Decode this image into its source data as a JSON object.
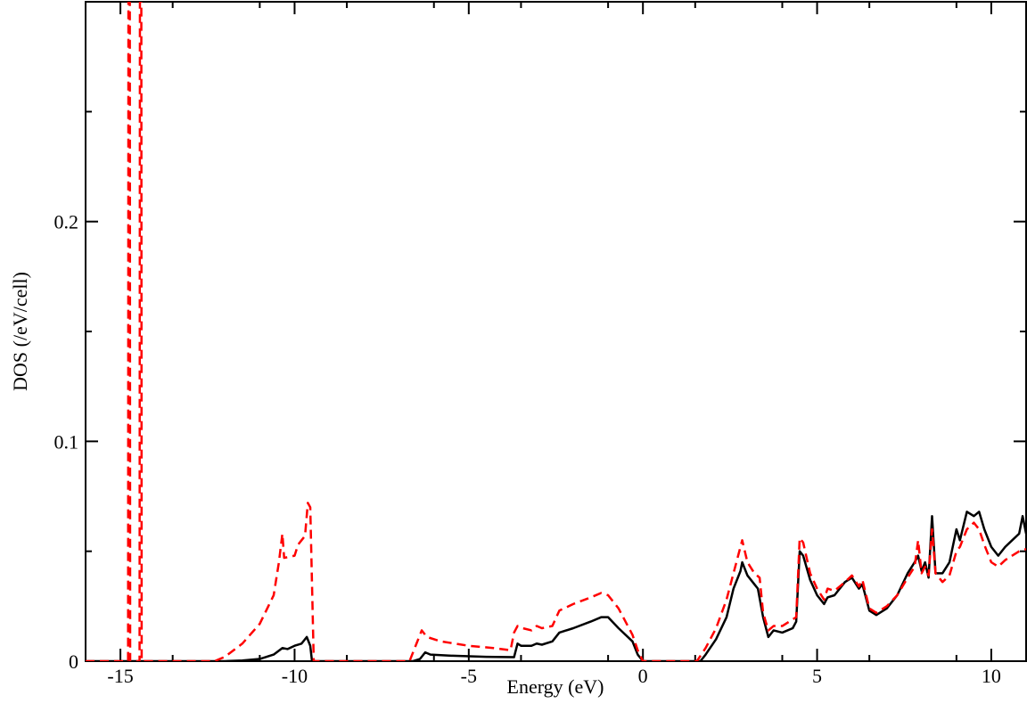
{
  "chart_data": {
    "type": "line",
    "title": "",
    "xlabel": "Energy (eV)",
    "ylabel": "DOS (/eV/cell)",
    "xlim": [
      -16,
      11
    ],
    "ylim": [
      0,
      0.3
    ],
    "x_ticks": [
      {
        "value": -15,
        "label": "-15"
      },
      {
        "value": -10,
        "label": "-10"
      },
      {
        "value": -5,
        "label": "-5"
      },
      {
        "value": 0,
        "label": "0"
      },
      {
        "value": 5,
        "label": "5"
      },
      {
        "value": 10,
        "label": "10"
      }
    ],
    "y_ticks": [
      {
        "value": 0,
        "label": "0"
      },
      {
        "value": 0.1,
        "label": "0.1"
      },
      {
        "value": 0.2,
        "label": "0.2"
      }
    ],
    "grid": false,
    "legend": "none",
    "series": [
      {
        "color": "#000000",
        "dash": "solid",
        "points": [
          [
            -16,
            0
          ],
          [
            -12,
            0
          ],
          [
            -11.5,
            0.0003
          ],
          [
            -11,
            0.001
          ],
          [
            -10.6,
            0.003
          ],
          [
            -10.35,
            0.006
          ],
          [
            -10.2,
            0.0055
          ],
          [
            -10.0,
            0.007
          ],
          [
            -9.8,
            0.008
          ],
          [
            -9.65,
            0.011
          ],
          [
            -9.55,
            0.007
          ],
          [
            -9.5,
            0
          ],
          [
            -6.6,
            0
          ],
          [
            -6.4,
            0.001
          ],
          [
            -6.25,
            0.004
          ],
          [
            -6.1,
            0.003
          ],
          [
            -5.5,
            0.0025
          ],
          [
            -4.5,
            0.002
          ],
          [
            -3.7,
            0.0018
          ],
          [
            -3.6,
            0.008
          ],
          [
            -3.5,
            0.007
          ],
          [
            -3.2,
            0.007
          ],
          [
            -3.05,
            0.008
          ],
          [
            -2.9,
            0.0075
          ],
          [
            -2.6,
            0.009
          ],
          [
            -2.4,
            0.013
          ],
          [
            -2.0,
            0.015
          ],
          [
            -1.5,
            0.018
          ],
          [
            -1.2,
            0.02
          ],
          [
            -1.0,
            0.02
          ],
          [
            -0.7,
            0.015
          ],
          [
            -0.3,
            0.009
          ],
          [
            -0.15,
            0.003
          ],
          [
            0,
            0
          ],
          [
            1.65,
            0
          ],
          [
            1.8,
            0.003
          ],
          [
            2.1,
            0.01
          ],
          [
            2.4,
            0.02
          ],
          [
            2.6,
            0.033
          ],
          [
            2.8,
            0.041
          ],
          [
            2.85,
            0.045
          ],
          [
            3.0,
            0.039
          ],
          [
            3.2,
            0.035
          ],
          [
            3.3,
            0.033
          ],
          [
            3.45,
            0.02
          ],
          [
            3.6,
            0.011
          ],
          [
            3.75,
            0.014
          ],
          [
            4.0,
            0.013
          ],
          [
            4.3,
            0.015
          ],
          [
            4.4,
            0.018
          ],
          [
            4.5,
            0.05
          ],
          [
            4.6,
            0.048
          ],
          [
            4.8,
            0.037
          ],
          [
            5.0,
            0.03
          ],
          [
            5.2,
            0.026
          ],
          [
            5.3,
            0.029
          ],
          [
            5.5,
            0.03
          ],
          [
            5.8,
            0.036
          ],
          [
            6.0,
            0.038
          ],
          [
            6.2,
            0.033
          ],
          [
            6.3,
            0.035
          ],
          [
            6.5,
            0.023
          ],
          [
            6.7,
            0.021
          ],
          [
            7.0,
            0.024
          ],
          [
            7.3,
            0.03
          ],
          [
            7.6,
            0.04
          ],
          [
            7.8,
            0.045
          ],
          [
            7.9,
            0.048
          ],
          [
            8.0,
            0.041
          ],
          [
            8.1,
            0.045
          ],
          [
            8.2,
            0.038
          ],
          [
            8.3,
            0.066
          ],
          [
            8.4,
            0.04
          ],
          [
            8.6,
            0.04
          ],
          [
            8.8,
            0.045
          ],
          [
            9.0,
            0.06
          ],
          [
            9.1,
            0.055
          ],
          [
            9.3,
            0.068
          ],
          [
            9.5,
            0.066
          ],
          [
            9.65,
            0.068
          ],
          [
            9.8,
            0.06
          ],
          [
            10.0,
            0.052
          ],
          [
            10.2,
            0.048
          ],
          [
            10.4,
            0.052
          ],
          [
            10.6,
            0.055
          ],
          [
            10.8,
            0.058
          ],
          [
            10.9,
            0.066
          ],
          [
            11.0,
            0.058
          ]
        ]
      },
      {
        "color": "#ff0000",
        "dash": "dashed",
        "points": [
          [
            -16,
            0
          ],
          [
            -14.78,
            0
          ],
          [
            -14.77,
            0.3
          ],
          [
            -14.73,
            0.3
          ],
          [
            -14.72,
            0
          ],
          [
            -14.45,
            0
          ],
          [
            -14.44,
            0.3
          ],
          [
            -14.4,
            0.3
          ],
          [
            -14.39,
            0
          ],
          [
            -12.3,
            0
          ],
          [
            -12.0,
            0.002
          ],
          [
            -11.5,
            0.008
          ],
          [
            -11.0,
            0.017
          ],
          [
            -10.6,
            0.03
          ],
          [
            -10.45,
            0.045
          ],
          [
            -10.35,
            0.058
          ],
          [
            -10.3,
            0.047
          ],
          [
            -10.0,
            0.048
          ],
          [
            -9.9,
            0.053
          ],
          [
            -9.8,
            0.055
          ],
          [
            -9.7,
            0.057
          ],
          [
            -9.62,
            0.072
          ],
          [
            -9.55,
            0.07
          ],
          [
            -9.45,
            0
          ],
          [
            -6.7,
            0
          ],
          [
            -6.5,
            0.008
          ],
          [
            -6.35,
            0.014
          ],
          [
            -6.2,
            0.011
          ],
          [
            -5.8,
            0.009
          ],
          [
            -5.0,
            0.007
          ],
          [
            -4.3,
            0.006
          ],
          [
            -3.8,
            0.005
          ],
          [
            -3.7,
            0.013
          ],
          [
            -3.6,
            0.016
          ],
          [
            -3.45,
            0.015
          ],
          [
            -3.2,
            0.014
          ],
          [
            -3.05,
            0.016
          ],
          [
            -2.9,
            0.015
          ],
          [
            -2.6,
            0.016
          ],
          [
            -2.4,
            0.023
          ],
          [
            -2.0,
            0.026
          ],
          [
            -1.5,
            0.029
          ],
          [
            -1.2,
            0.031
          ],
          [
            -1.0,
            0.03
          ],
          [
            -0.7,
            0.024
          ],
          [
            -0.3,
            0.012
          ],
          [
            -0.15,
            0.005
          ],
          [
            0,
            0
          ],
          [
            1.55,
            0
          ],
          [
            1.8,
            0.006
          ],
          [
            2.1,
            0.015
          ],
          [
            2.4,
            0.028
          ],
          [
            2.6,
            0.04
          ],
          [
            2.75,
            0.049
          ],
          [
            2.85,
            0.055
          ],
          [
            3.0,
            0.045
          ],
          [
            3.2,
            0.04
          ],
          [
            3.35,
            0.038
          ],
          [
            3.45,
            0.022
          ],
          [
            3.6,
            0.014
          ],
          [
            3.75,
            0.016
          ],
          [
            4.0,
            0.016
          ],
          [
            4.3,
            0.019
          ],
          [
            4.4,
            0.02
          ],
          [
            4.5,
            0.056
          ],
          [
            4.6,
            0.054
          ],
          [
            4.8,
            0.04
          ],
          [
            5.0,
            0.033
          ],
          [
            5.2,
            0.028
          ],
          [
            5.3,
            0.033
          ],
          [
            5.5,
            0.032
          ],
          [
            5.8,
            0.036
          ],
          [
            6.0,
            0.039
          ],
          [
            6.2,
            0.034
          ],
          [
            6.3,
            0.037
          ],
          [
            6.5,
            0.024
          ],
          [
            6.7,
            0.022
          ],
          [
            7.0,
            0.025
          ],
          [
            7.3,
            0.03
          ],
          [
            7.6,
            0.038
          ],
          [
            7.8,
            0.043
          ],
          [
            7.9,
            0.055
          ],
          [
            8.0,
            0.04
          ],
          [
            8.1,
            0.043
          ],
          [
            8.2,
            0.039
          ],
          [
            8.3,
            0.06
          ],
          [
            8.4,
            0.04
          ],
          [
            8.6,
            0.036
          ],
          [
            8.8,
            0.039
          ],
          [
            9.0,
            0.05
          ],
          [
            9.1,
            0.052
          ],
          [
            9.3,
            0.06
          ],
          [
            9.5,
            0.063
          ],
          [
            9.65,
            0.06
          ],
          [
            9.8,
            0.053
          ],
          [
            10.0,
            0.045
          ],
          [
            10.2,
            0.043
          ],
          [
            10.4,
            0.046
          ],
          [
            10.6,
            0.048
          ],
          [
            10.8,
            0.05
          ],
          [
            11.0,
            0.051
          ]
        ]
      }
    ]
  }
}
